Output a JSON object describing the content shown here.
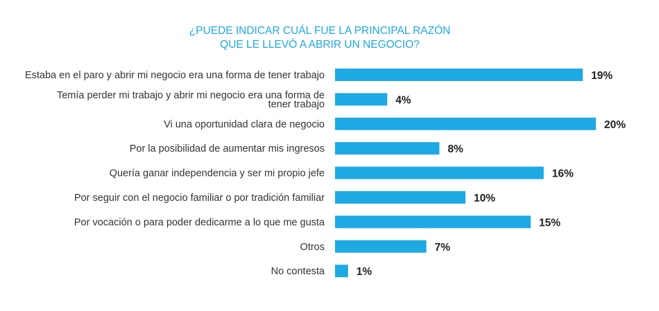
{
  "chart_data": {
    "type": "bar",
    "orientation": "horizontal",
    "title": [
      "¿PUEDE INDICAR CUÁL FUE LA PRINCIPAL RAZÓN",
      "QUE LE LLEVÓ A ABRIR UN NEGOCIO?"
    ],
    "categories": [
      [
        "Estaba en el paro y abrir mi negocio era una forma de tener trabajo"
      ],
      [
        "Temía perder mi trabajo y abrir mi negocio era una forma de",
        "tener trabajo"
      ],
      [
        "Vi una oportunidad clara de negocio"
      ],
      [
        "Por la posibilidad de aumentar mis ingresos"
      ],
      [
        "Quería ganar independencia y ser mi propio jefe"
      ],
      [
        "Por seguir con el negocio familiar o por tradición familiar"
      ],
      [
        "Por vocación o para poder dedicarme a lo que me gusta"
      ],
      [
        "Otros"
      ],
      [
        "No contesta"
      ]
    ],
    "values": [
      19,
      4,
      20,
      8,
      16,
      10,
      15,
      7,
      1
    ],
    "value_labels": [
      "19%",
      "4%",
      "20%",
      "8%",
      "16%",
      "10%",
      "15%",
      "7%",
      "1%"
    ],
    "unit": "%",
    "xlim": [
      0,
      20
    ],
    "grid": false,
    "axes_visible": false,
    "colors": {
      "bar": "#1da9e3",
      "title": "#1da9e3",
      "label": "#333333",
      "value": "#222222"
    }
  }
}
